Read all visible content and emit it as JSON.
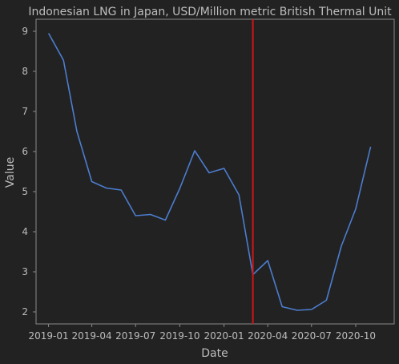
{
  "chart_data": {
    "type": "line",
    "title": "Indonesian LNG in Japan, USD/Million metric British Thermal Unit",
    "xlabel": "Date",
    "ylabel": "Value",
    "x": [
      "2019-01",
      "2019-02",
      "2019-03",
      "2019-04",
      "2019-05",
      "2019-06",
      "2019-07",
      "2019-08",
      "2019-09",
      "2019-10",
      "2019-11",
      "2019-12",
      "2020-01",
      "2020-02",
      "2020-03",
      "2020-04",
      "2020-05",
      "2020-06",
      "2020-07",
      "2020-08",
      "2020-09",
      "2020-10",
      "2020-11"
    ],
    "series": [
      {
        "values": [
          8.95,
          8.28,
          6.5,
          5.25,
          5.09,
          5.04,
          4.4,
          4.43,
          4.29,
          5.08,
          6.02,
          5.47,
          5.58,
          4.92,
          2.93,
          3.28,
          2.13,
          2.04,
          2.06,
          2.29,
          3.64,
          4.57,
          6.12
        ],
        "color": "#4c7dcf"
      }
    ],
    "x_ticks": [
      "2019-01",
      "2019-04",
      "2019-07",
      "2019-10",
      "2020-01",
      "2020-04",
      "2020-07",
      "2020-10"
    ],
    "y_ticks": [
      2,
      3,
      4,
      5,
      6,
      7,
      8,
      9
    ],
    "ylim": [
      1.7,
      9.3
    ],
    "xlim": [
      "2018-12-06",
      "2020-12-20"
    ],
    "vline": {
      "x": "2020-03-01",
      "color": "#d0161b"
    },
    "grid": false,
    "colors": {
      "background": "#222222",
      "axes": "#8a8a8a",
      "text": "#bdbdbd"
    }
  }
}
